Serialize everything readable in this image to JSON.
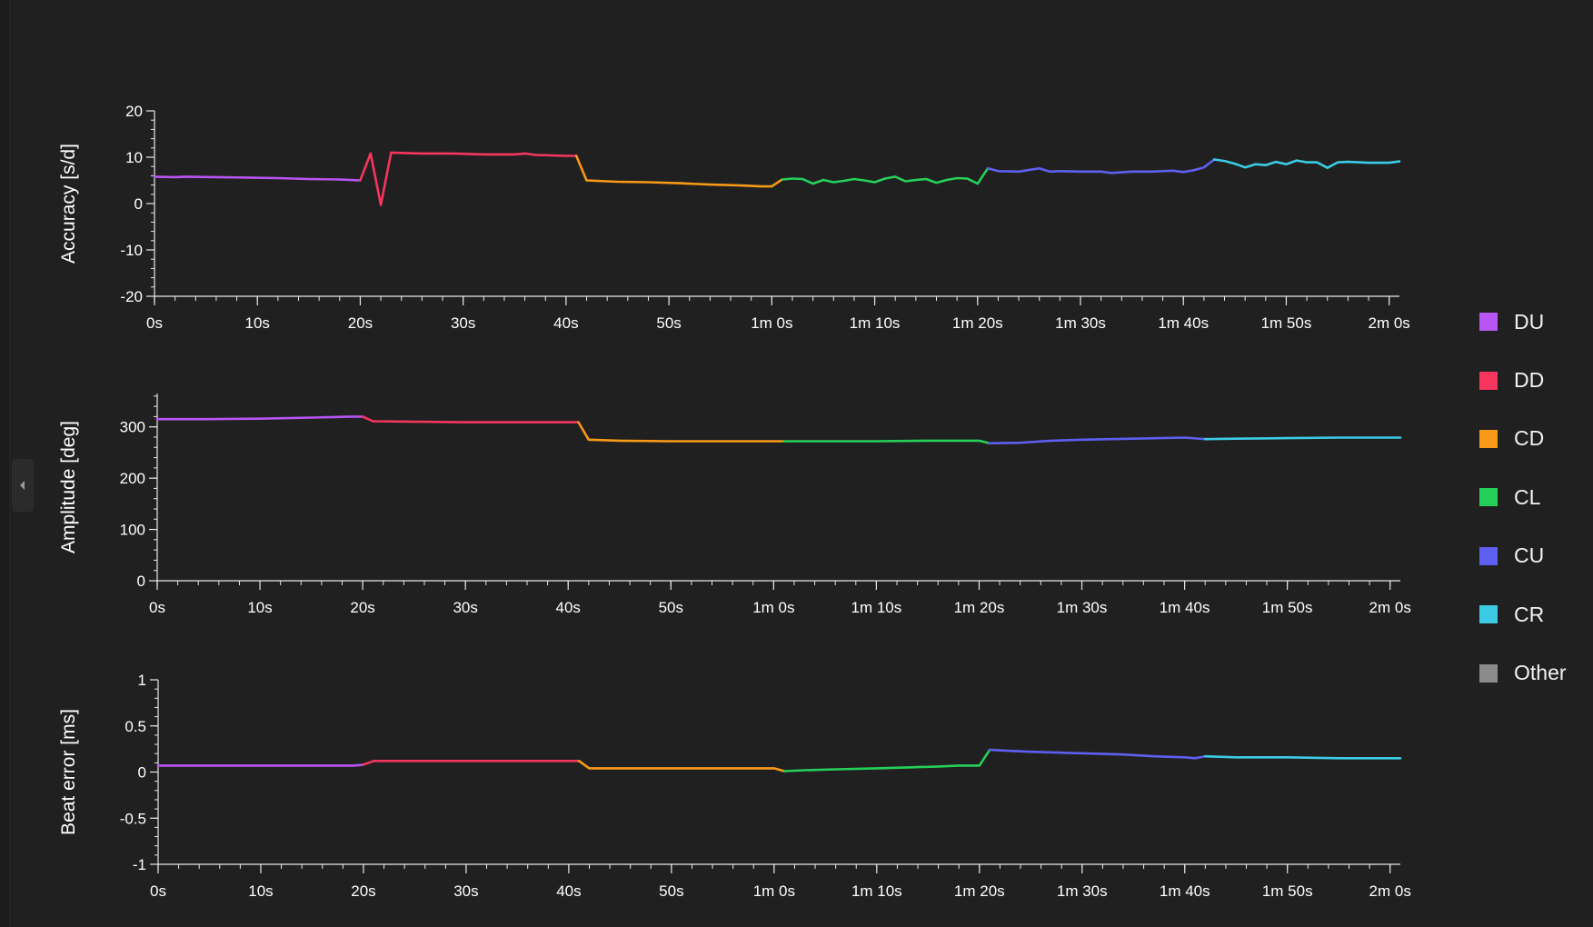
{
  "legend": {
    "items": [
      {
        "label": "DU",
        "color": "#b954f5"
      },
      {
        "label": "DD",
        "color": "#f6365e"
      },
      {
        "label": "CD",
        "color": "#f79a17"
      },
      {
        "label": "CL",
        "color": "#25d05a"
      },
      {
        "label": "CU",
        "color": "#5d5ff0"
      },
      {
        "label": "CR",
        "color": "#3bcbe5"
      },
      {
        "label": "Other",
        "color": "#8b8b8b"
      }
    ]
  },
  "chart_data": [
    {
      "type": "line",
      "id": "accuracy",
      "ylabel": "Accuracy [s/d]",
      "ylim": [
        -20,
        20
      ],
      "yticks": [
        -20,
        -10,
        0,
        10,
        20
      ],
      "ytick_labels": [
        "-20",
        "-10",
        "0",
        "10",
        "20"
      ],
      "xlim": [
        0,
        121
      ],
      "xticks": [
        0,
        10,
        20,
        30,
        40,
        50,
        60,
        70,
        80,
        90,
        100,
        110,
        120
      ],
      "xtick_labels": [
        "0s",
        "10s",
        "20s",
        "30s",
        "40s",
        "50s",
        "1m 0s",
        "1m 10s",
        "1m 20s",
        "1m 30s",
        "1m 40s",
        "1m 50s",
        "2m 0s"
      ],
      "grid": false,
      "series": [
        {
          "name": "DU",
          "x": [
            0,
            2,
            3,
            6,
            9,
            12,
            15,
            18,
            20
          ],
          "y": [
            5.8,
            5.7,
            5.8,
            5.7,
            5.6,
            5.5,
            5.3,
            5.2,
            5.0
          ]
        },
        {
          "name": "DD",
          "x": [
            20,
            21,
            22,
            23,
            26,
            29,
            32,
            35,
            36,
            37,
            40,
            41
          ],
          "y": [
            5.0,
            10.8,
            -0.3,
            11.0,
            10.8,
            10.8,
            10.6,
            10.6,
            10.8,
            10.5,
            10.3,
            10.3
          ]
        },
        {
          "name": "CD",
          "x": [
            41,
            42,
            45,
            48,
            51,
            54,
            57,
            59,
            60,
            61
          ],
          "y": [
            10.3,
            5.0,
            4.7,
            4.6,
            4.4,
            4.1,
            3.9,
            3.7,
            3.7,
            5.2
          ]
        },
        {
          "name": "CL",
          "x": [
            61,
            62,
            63,
            64,
            65,
            66,
            67,
            68,
            69,
            70,
            71,
            72,
            73,
            74,
            75,
            76,
            77,
            78,
            79,
            80,
            81
          ],
          "y": [
            5.2,
            5.4,
            5.3,
            4.3,
            5.1,
            4.6,
            4.9,
            5.3,
            5.0,
            4.6,
            5.4,
            5.8,
            4.8,
            5.1,
            5.3,
            4.5,
            5.1,
            5.5,
            5.4,
            4.3,
            7.6
          ]
        },
        {
          "name": "CU",
          "x": [
            81,
            82,
            84,
            86,
            87,
            88,
            90,
            92,
            93,
            95,
            97,
            99,
            100,
            101,
            102,
            103
          ],
          "y": [
            7.6,
            7.0,
            6.9,
            7.6,
            6.9,
            7.0,
            6.9,
            6.9,
            6.6,
            6.9,
            6.9,
            7.1,
            6.8,
            7.2,
            7.8,
            9.5
          ]
        },
        {
          "name": "CR",
          "x": [
            103,
            104,
            105,
            106,
            107,
            108,
            109,
            110,
            111,
            112,
            113,
            114,
            115,
            116,
            118,
            120,
            121
          ],
          "y": [
            9.5,
            9.2,
            8.6,
            7.8,
            8.5,
            8.3,
            9.0,
            8.5,
            9.3,
            8.9,
            8.9,
            7.7,
            8.9,
            9.0,
            8.8,
            8.8,
            9.1
          ]
        }
      ]
    },
    {
      "type": "line",
      "id": "amplitude",
      "ylabel": "Amplitude [deg]",
      "ylim": [
        0,
        365
      ],
      "yticks": [
        0,
        100,
        200,
        300
      ],
      "ytick_labels": [
        "0",
        "100",
        "200",
        "300"
      ],
      "xlim": [
        0,
        121
      ],
      "xticks": [
        0,
        10,
        20,
        30,
        40,
        50,
        60,
        70,
        80,
        90,
        100,
        110,
        120
      ],
      "xtick_labels": [
        "0s",
        "10s",
        "20s",
        "30s",
        "40s",
        "50s",
        "1m 0s",
        "1m 10s",
        "1m 20s",
        "1m 30s",
        "1m 40s",
        "1m 50s",
        "2m 0s"
      ],
      "grid": false,
      "series": [
        {
          "name": "DU",
          "x": [
            0,
            5,
            10,
            15,
            19,
            20
          ],
          "y": [
            315,
            315,
            316,
            318,
            320,
            320
          ]
        },
        {
          "name": "DD",
          "x": [
            20,
            21,
            25,
            30,
            35,
            40,
            41
          ],
          "y": [
            320,
            311,
            310,
            309,
            309,
            309,
            309
          ]
        },
        {
          "name": "CD",
          "x": [
            41,
            42,
            45,
            50,
            55,
            60,
            61
          ],
          "y": [
            309,
            275,
            273,
            272,
            272,
            272,
            272
          ]
        },
        {
          "name": "CL",
          "x": [
            61,
            65,
            70,
            75,
            80,
            81
          ],
          "y": [
            272,
            272,
            272,
            273,
            273,
            268
          ]
        },
        {
          "name": "CU",
          "x": [
            81,
            84,
            87,
            90,
            95,
            100,
            102
          ],
          "y": [
            268,
            269,
            273,
            275,
            277,
            279,
            276
          ]
        },
        {
          "name": "CR",
          "x": [
            102,
            105,
            110,
            115,
            121
          ],
          "y": [
            276,
            277,
            278,
            279,
            279
          ]
        }
      ]
    },
    {
      "type": "line",
      "id": "beat-error",
      "ylabel": "Beat error [ms]",
      "ylim": [
        -1,
        1
      ],
      "yticks": [
        -1,
        -0.5,
        0,
        0.5,
        1
      ],
      "ytick_labels": [
        "-1",
        "-0.5",
        "0",
        "0.5",
        "1"
      ],
      "xlim": [
        0,
        121
      ],
      "xticks": [
        0,
        10,
        20,
        30,
        40,
        50,
        60,
        70,
        80,
        90,
        100,
        110,
        120
      ],
      "xtick_labels": [
        "0s",
        "10s",
        "20s",
        "30s",
        "40s",
        "50s",
        "1m 0s",
        "1m 10s",
        "1m 20s",
        "1m 30s",
        "1m 40s",
        "1m 50s",
        "2m 0s"
      ],
      "grid": false,
      "series": [
        {
          "name": "DU",
          "x": [
            0,
            5,
            10,
            15,
            19,
            20
          ],
          "y": [
            0.07,
            0.07,
            0.07,
            0.07,
            0.07,
            0.08
          ]
        },
        {
          "name": "DD",
          "x": [
            20,
            21,
            25,
            30,
            35,
            40,
            41
          ],
          "y": [
            0.08,
            0.12,
            0.12,
            0.12,
            0.12,
            0.12,
            0.12
          ]
        },
        {
          "name": "CD",
          "x": [
            41,
            42,
            45,
            50,
            55,
            60,
            61
          ],
          "y": [
            0.12,
            0.04,
            0.04,
            0.04,
            0.04,
            0.04,
            0.01
          ]
        },
        {
          "name": "CL",
          "x": [
            61,
            63,
            66,
            70,
            73,
            76,
            78,
            80,
            81
          ],
          "y": [
            0.01,
            0.02,
            0.03,
            0.04,
            0.05,
            0.06,
            0.07,
            0.07,
            0.24
          ]
        },
        {
          "name": "CU",
          "x": [
            81,
            83,
            85,
            88,
            91,
            94,
            97,
            100,
            101,
            102
          ],
          "y": [
            0.24,
            0.23,
            0.22,
            0.21,
            0.2,
            0.19,
            0.17,
            0.16,
            0.15,
            0.17
          ]
        },
        {
          "name": "CR",
          "x": [
            102,
            105,
            110,
            115,
            121
          ],
          "y": [
            0.17,
            0.16,
            0.16,
            0.15,
            0.15
          ]
        }
      ]
    }
  ]
}
